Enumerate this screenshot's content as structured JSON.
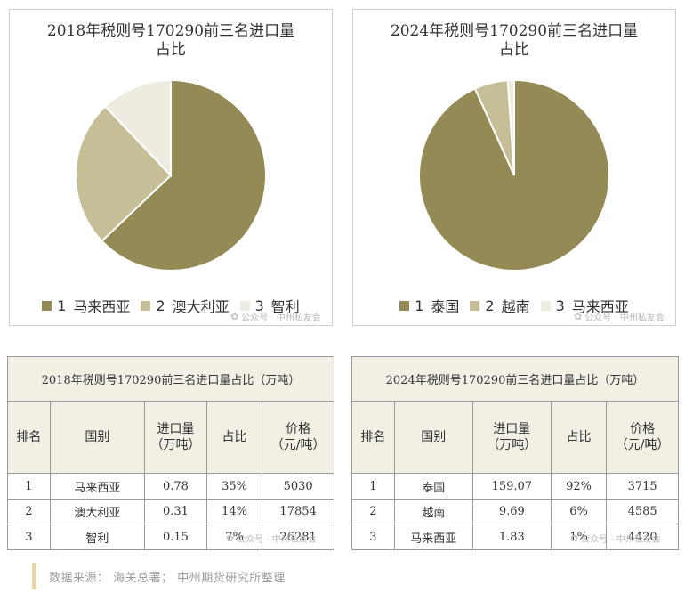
{
  "chart_data": [
    {
      "type": "pie",
      "title": "2018年税则号170290前三名进口量占比",
      "categories": [
        "马来西亚",
        "澳大利亚",
        "智利"
      ],
      "values": [
        0.78,
        0.31,
        0.15
      ],
      "colors": [
        "#938a55",
        "#c5be97",
        "#eeebe0"
      ],
      "legend": "bottom"
    },
    {
      "type": "pie",
      "title": "2024年税则号170290前三名进口量占比",
      "categories": [
        "泰国",
        "越南",
        "马来西亚"
      ],
      "values": [
        159.07,
        9.69,
        1.83
      ],
      "colors": [
        "#938a55",
        "#c5be97",
        "#eeebe0"
      ],
      "legend": "bottom"
    }
  ],
  "legend_left": [
    {
      "idx": "1",
      "label": "马来西亚",
      "color": "#938a55"
    },
    {
      "idx": "2",
      "label": "澳大利亚",
      "color": "#c5be97"
    },
    {
      "idx": "3",
      "label": "智利",
      "color": "#eeebe0"
    }
  ],
  "legend_right": [
    {
      "idx": "1",
      "label": "泰国",
      "color": "#938a55"
    },
    {
      "idx": "2",
      "label": "越南",
      "color": "#c5be97"
    },
    {
      "idx": "3",
      "label": "马来西亚",
      "color": "#eeebe0"
    }
  ],
  "watermark": "公众号 · 中州私友会",
  "table_left": {
    "caption": "2018年税则号170290前三名进口量占比（万吨）",
    "headers": [
      "排名",
      "国别",
      "进口量\n（万吨）",
      "占比",
      "价格\n（元/吨）"
    ],
    "rows": [
      [
        "1",
        "马来西亚",
        "0.78",
        "35%",
        "5030"
      ],
      [
        "2",
        "澳大利亚",
        "0.31",
        "14%",
        "17854"
      ],
      [
        "3",
        "智利",
        "0.15",
        "7%",
        "26281"
      ]
    ]
  },
  "table_right": {
    "caption": "2024年税则号170290前三名进口量占比（万吨）",
    "headers": [
      "排名",
      "国别",
      "进口量\n（万吨）",
      "占比",
      "价格\n（元/吨）"
    ],
    "rows": [
      [
        "1",
        "泰国",
        "159.07",
        "92%",
        "3715"
      ],
      [
        "2",
        "越南",
        "9.69",
        "6%",
        "4585"
      ],
      [
        "3",
        "马来西亚",
        "1.83",
        "1%",
        "4420"
      ]
    ]
  },
  "source": "数据来源：  海关总署；  中州期货研究所整理"
}
